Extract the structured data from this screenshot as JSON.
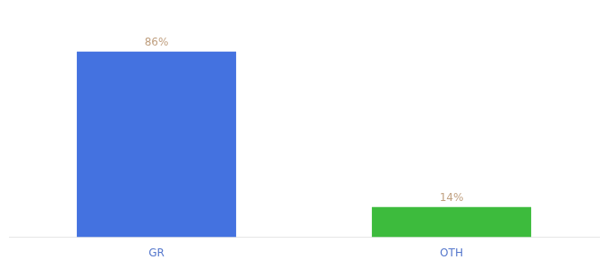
{
  "chart_data": {
    "type": "bar",
    "categories": [
      "GR",
      "OTH"
    ],
    "values": [
      86,
      14
    ],
    "value_labels": [
      "86%",
      "14%"
    ],
    "data_labels": true,
    "colors": [
      "#4472e0",
      "#3dbb3d"
    ],
    "ylim": [
      0,
      100
    ],
    "grid": false,
    "tick_labels": "x"
  }
}
